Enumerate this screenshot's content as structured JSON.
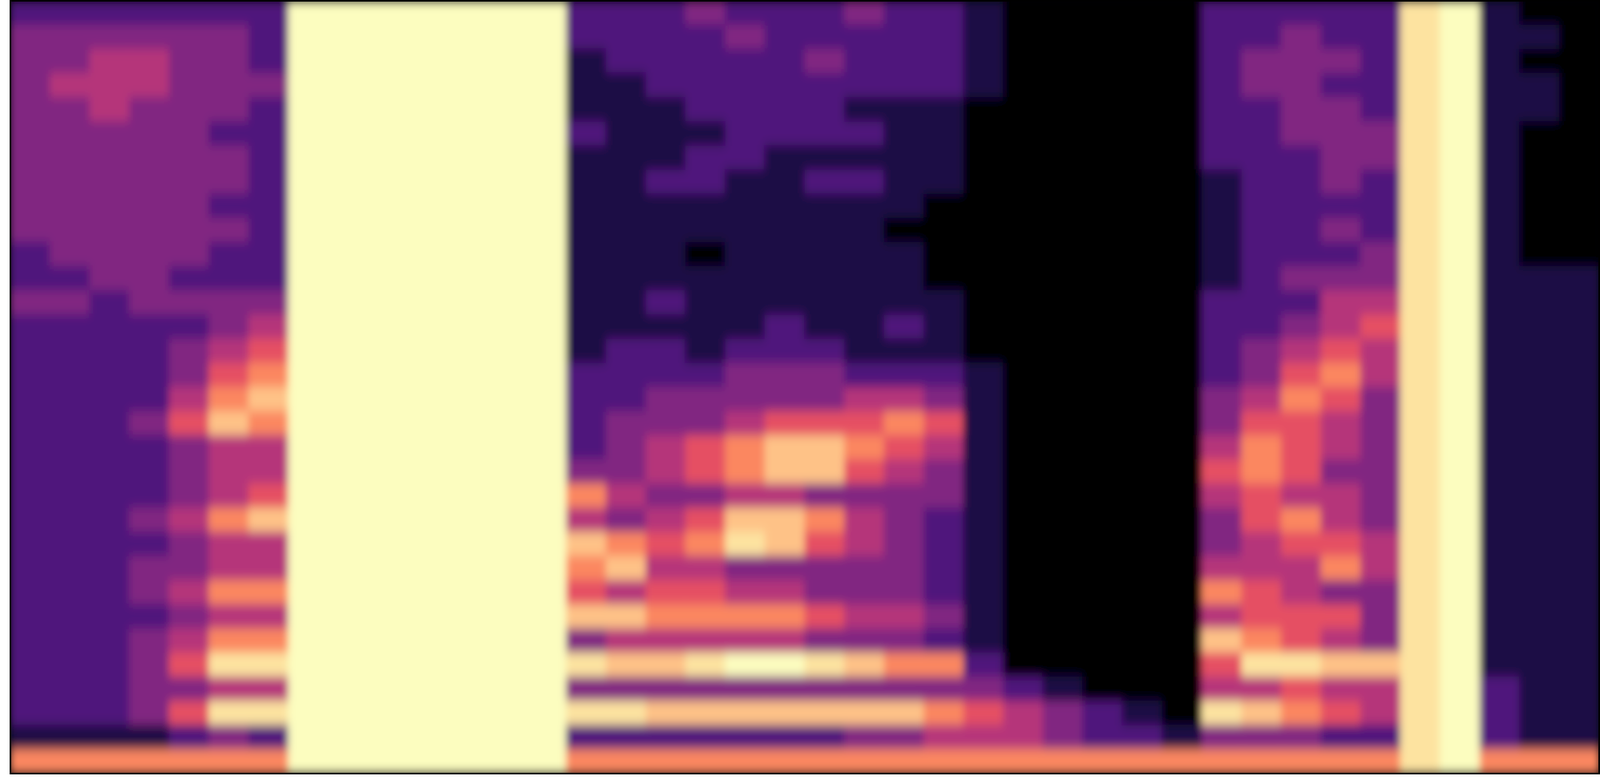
{
  "chart_data": {
    "type": "heatmap",
    "tick_labels": false,
    "grid": false,
    "zlim": [
      0,
      9
    ],
    "colors": [
      "#000004",
      "#1c1044",
      "#4f127b",
      "#812581",
      "#b5367a",
      "#e55064",
      "#fb8761",
      "#fec287",
      "#fde3a0",
      "#fcfdbf"
    ],
    "cells": [
      [
        2,
        2,
        2,
        2,
        2,
        2,
        2,
        9,
        9,
        9,
        9,
        9,
        9,
        9,
        2,
        2,
        2,
        3,
        2,
        2,
        2,
        3,
        2,
        2,
        1,
        0,
        0,
        0,
        0,
        0,
        2,
        2,
        2,
        2,
        2,
        8,
        9,
        1,
        0,
        0
      ],
      [
        3,
        3,
        3,
        3,
        3,
        3,
        2,
        9,
        9,
        9,
        9,
        9,
        9,
        9,
        2,
        2,
        2,
        2,
        3,
        2,
        2,
        2,
        2,
        2,
        1,
        0,
        0,
        0,
        0,
        0,
        2,
        2,
        3,
        2,
        2,
        8,
        9,
        1,
        1,
        0
      ],
      [
        3,
        3,
        4,
        4,
        3,
        3,
        2,
        9,
        9,
        9,
        9,
        9,
        9,
        9,
        1,
        2,
        2,
        2,
        2,
        2,
        3,
        2,
        2,
        2,
        1,
        0,
        0,
        0,
        0,
        0,
        2,
        3,
        3,
        3,
        2,
        8,
        9,
        1,
        0,
        0
      ],
      [
        3,
        4,
        4,
        4,
        3,
        3,
        3,
        9,
        9,
        9,
        9,
        9,
        9,
        9,
        1,
        1,
        2,
        2,
        2,
        2,
        2,
        2,
        2,
        2,
        1,
        0,
        0,
        0,
        0,
        0,
        2,
        3,
        3,
        2,
        2,
        8,
        9,
        1,
        1,
        0
      ],
      [
        3,
        3,
        4,
        3,
        3,
        3,
        2,
        9,
        9,
        9,
        9,
        9,
        9,
        9,
        1,
        1,
        1,
        2,
        2,
        2,
        2,
        1,
        1,
        1,
        0,
        0,
        0,
        0,
        0,
        0,
        2,
        2,
        3,
        3,
        2,
        8,
        9,
        1,
        1,
        0
      ],
      [
        3,
        3,
        3,
        3,
        3,
        2,
        2,
        9,
        9,
        9,
        9,
        9,
        9,
        9,
        2,
        1,
        1,
        1,
        2,
        2,
        2,
        2,
        1,
        1,
        0,
        0,
        0,
        0,
        0,
        0,
        2,
        2,
        3,
        3,
        3,
        8,
        9,
        1,
        0,
        0
      ],
      [
        3,
        3,
        3,
        3,
        3,
        3,
        2,
        9,
        9,
        9,
        9,
        9,
        9,
        9,
        1,
        1,
        1,
        2,
        2,
        1,
        1,
        1,
        1,
        1,
        0,
        0,
        0,
        0,
        0,
        0,
        2,
        2,
        2,
        3,
        3,
        8,
        9,
        1,
        0,
        0
      ],
      [
        3,
        3,
        3,
        3,
        3,
        3,
        2,
        9,
        9,
        9,
        9,
        9,
        9,
        9,
        1,
        1,
        2,
        2,
        1,
        1,
        2,
        2,
        1,
        1,
        0,
        0,
        0,
        0,
        0,
        0,
        1,
        2,
        2,
        3,
        2,
        8,
        9,
        1,
        0,
        0
      ],
      [
        3,
        3,
        3,
        3,
        3,
        2,
        2,
        9,
        9,
        9,
        9,
        9,
        9,
        9,
        1,
        1,
        1,
        1,
        1,
        1,
        1,
        1,
        1,
        0,
        0,
        0,
        0,
        0,
        0,
        0,
        1,
        2,
        2,
        2,
        2,
        8,
        9,
        1,
        0,
        0
      ],
      [
        3,
        3,
        3,
        3,
        3,
        3,
        2,
        9,
        9,
        9,
        9,
        9,
        9,
        9,
        1,
        1,
        1,
        1,
        1,
        1,
        1,
        1,
        0,
        0,
        0,
        0,
        0,
        0,
        0,
        0,
        1,
        2,
        2,
        3,
        2,
        8,
        9,
        1,
        0,
        0
      ],
      [
        2,
        3,
        3,
        3,
        3,
        2,
        2,
        9,
        9,
        9,
        9,
        9,
        9,
        9,
        1,
        1,
        1,
        0,
        1,
        1,
        1,
        1,
        1,
        0,
        0,
        0,
        0,
        0,
        0,
        0,
        1,
        2,
        2,
        2,
        3,
        8,
        9,
        1,
        0,
        0
      ],
      [
        2,
        2,
        3,
        3,
        2,
        2,
        2,
        9,
        9,
        9,
        9,
        9,
        9,
        9,
        1,
        1,
        1,
        1,
        1,
        1,
        1,
        1,
        1,
        0,
        0,
        0,
        0,
        0,
        0,
        0,
        1,
        2,
        3,
        3,
        3,
        8,
        9,
        1,
        1,
        1
      ],
      [
        3,
        3,
        2,
        3,
        3,
        3,
        3,
        9,
        9,
        9,
        9,
        9,
        9,
        9,
        1,
        1,
        2,
        1,
        1,
        1,
        1,
        1,
        1,
        1,
        0,
        0,
        0,
        0,
        0,
        0,
        2,
        2,
        2,
        4,
        4,
        8,
        9,
        1,
        1,
        1
      ],
      [
        2,
        2,
        2,
        2,
        2,
        3,
        4,
        9,
        9,
        9,
        9,
        9,
        9,
        9,
        1,
        1,
        1,
        1,
        1,
        2,
        1,
        1,
        2,
        1,
        0,
        0,
        0,
        0,
        0,
        0,
        2,
        2,
        3,
        4,
        5,
        8,
        9,
        1,
        1,
        1
      ],
      [
        2,
        2,
        2,
        2,
        3,
        4,
        5,
        9,
        9,
        9,
        9,
        9,
        9,
        9,
        1,
        2,
        2,
        1,
        2,
        2,
        2,
        1,
        1,
        1,
        0,
        0,
        0,
        0,
        0,
        0,
        2,
        3,
        4,
        5,
        4,
        8,
        9,
        1,
        1,
        1
      ],
      [
        2,
        2,
        2,
        2,
        3,
        5,
        6,
        9,
        9,
        9,
        9,
        9,
        9,
        9,
        2,
        2,
        2,
        2,
        3,
        3,
        3,
        2,
        2,
        2,
        1,
        0,
        0,
        0,
        0,
        0,
        2,
        3,
        5,
        6,
        4,
        8,
        9,
        1,
        1,
        1
      ],
      [
        2,
        2,
        2,
        2,
        4,
        6,
        7,
        9,
        9,
        9,
        9,
        9,
        9,
        9,
        2,
        2,
        3,
        3,
        3,
        3,
        3,
        4,
        4,
        3,
        1,
        0,
        0,
        0,
        0,
        0,
        3,
        4,
        6,
        5,
        3,
        8,
        9,
        1,
        1,
        1
      ],
      [
        2,
        2,
        2,
        3,
        5,
        7,
        6,
        9,
        9,
        9,
        9,
        9,
        9,
        9,
        2,
        3,
        3,
        3,
        4,
        5,
        5,
        5,
        6,
        5,
        1,
        0,
        0,
        0,
        0,
        0,
        3,
        5,
        5,
        4,
        3,
        8,
        9,
        1,
        1,
        1
      ],
      [
        2,
        2,
        2,
        2,
        3,
        4,
        4,
        9,
        9,
        9,
        9,
        9,
        9,
        9,
        2,
        3,
        4,
        5,
        6,
        7,
        7,
        6,
        5,
        4,
        1,
        0,
        0,
        0,
        0,
        0,
        4,
        6,
        5,
        4,
        3,
        8,
        9,
        1,
        1,
        1
      ],
      [
        2,
        2,
        2,
        2,
        3,
        4,
        4,
        9,
        9,
        9,
        9,
        9,
        9,
        9,
        3,
        3,
        4,
        5,
        6,
        7,
        7,
        5,
        4,
        3,
        1,
        0,
        0,
        0,
        0,
        0,
        5,
        6,
        5,
        3,
        3,
        8,
        9,
        1,
        1,
        1
      ],
      [
        2,
        2,
        2,
        2,
        3,
        4,
        5,
        9,
        9,
        9,
        9,
        9,
        9,
        9,
        6,
        4,
        3,
        3,
        4,
        4,
        3,
        3,
        3,
        3,
        1,
        0,
        0,
        0,
        0,
        0,
        4,
        5,
        4,
        4,
        3,
        8,
        9,
        1,
        1,
        1
      ],
      [
        2,
        2,
        2,
        3,
        4,
        6,
        7,
        9,
        9,
        9,
        9,
        9,
        9,
        9,
        4,
        3,
        4,
        5,
        7,
        7,
        6,
        4,
        3,
        2,
        1,
        0,
        0,
        0,
        0,
        0,
        3,
        5,
        6,
        4,
        3,
        8,
        9,
        1,
        1,
        1
      ],
      [
        2,
        2,
        2,
        2,
        3,
        4,
        4,
        9,
        9,
        9,
        9,
        9,
        9,
        9,
        7,
        6,
        5,
        6,
        8,
        7,
        5,
        4,
        3,
        2,
        1,
        0,
        0,
        0,
        0,
        0,
        3,
        4,
        5,
        5,
        4,
        8,
        9,
        1,
        1,
        1
      ],
      [
        2,
        2,
        2,
        3,
        3,
        4,
        4,
        9,
        9,
        9,
        9,
        9,
        9,
        9,
        6,
        7,
        4,
        4,
        3,
        3,
        3,
        3,
        3,
        2,
        1,
        0,
        0,
        0,
        0,
        0,
        4,
        4,
        4,
        6,
        4,
        8,
        9,
        1,
        1,
        1
      ],
      [
        2,
        2,
        2,
        3,
        4,
        6,
        6,
        9,
        9,
        9,
        9,
        9,
        9,
        9,
        5,
        4,
        5,
        5,
        4,
        4,
        3,
        3,
        3,
        2,
        1,
        0,
        0,
        0,
        0,
        0,
        6,
        5,
        4,
        3,
        3,
        8,
        9,
        1,
        1,
        1
      ],
      [
        2,
        2,
        2,
        2,
        3,
        4,
        4,
        9,
        9,
        9,
        9,
        9,
        9,
        9,
        7,
        7,
        6,
        6,
        6,
        6,
        5,
        4,
        4,
        3,
        1,
        0,
        0,
        0,
        0,
        0,
        4,
        5,
        5,
        5,
        3,
        8,
        9,
        1,
        1,
        1
      ],
      [
        2,
        2,
        2,
        3,
        4,
        6,
        6,
        9,
        9,
        9,
        9,
        9,
        9,
        9,
        3,
        4,
        4,
        4,
        4,
        4,
        3,
        3,
        3,
        2,
        1,
        0,
        0,
        0,
        0,
        0,
        7,
        6,
        5,
        4,
        3,
        8,
        9,
        1,
        1,
        1
      ],
      [
        2,
        2,
        2,
        3,
        5,
        8,
        8,
        9,
        9,
        9,
        9,
        9,
        9,
        9,
        8,
        7,
        7,
        8,
        9,
        9,
        8,
        7,
        6,
        6,
        2,
        0,
        0,
        0,
        0,
        0,
        5,
        8,
        8,
        7,
        7,
        8,
        9,
        1,
        1,
        1
      ],
      [
        2,
        2,
        2,
        3,
        3,
        4,
        4,
        9,
        9,
        9,
        9,
        9,
        9,
        9,
        3,
        3,
        3,
        3,
        3,
        3,
        3,
        3,
        3,
        3,
        3,
        2,
        1,
        0,
        0,
        0,
        4,
        4,
        5,
        4,
        4,
        8,
        9,
        2,
        1,
        1
      ],
      [
        2,
        2,
        2,
        3,
        5,
        8,
        8,
        9,
        9,
        9,
        9,
        9,
        9,
        9,
        8,
        8,
        7,
        7,
        7,
        7,
        7,
        7,
        7,
        6,
        5,
        4,
        3,
        2,
        1,
        0,
        8,
        7,
        6,
        5,
        4,
        8,
        9,
        2,
        1,
        1
      ],
      [
        1,
        1,
        1,
        1,
        2,
        3,
        2,
        9,
        9,
        9,
        9,
        9,
        9,
        9,
        2,
        2,
        2,
        2,
        2,
        2,
        2,
        3,
        3,
        4,
        4,
        4,
        3,
        2,
        2,
        1,
        3,
        3,
        3,
        2,
        2,
        8,
        9,
        2,
        1,
        1
      ],
      [
        6,
        6,
        6,
        6,
        6,
        6,
        6,
        9,
        9,
        9,
        9,
        9,
        9,
        9,
        6,
        6,
        6,
        6,
        6,
        6,
        6,
        6,
        6,
        6,
        6,
        6,
        6,
        6,
        6,
        6,
        6,
        6,
        6,
        6,
        6,
        8,
        9,
        6,
        6,
        6
      ]
    ]
  }
}
